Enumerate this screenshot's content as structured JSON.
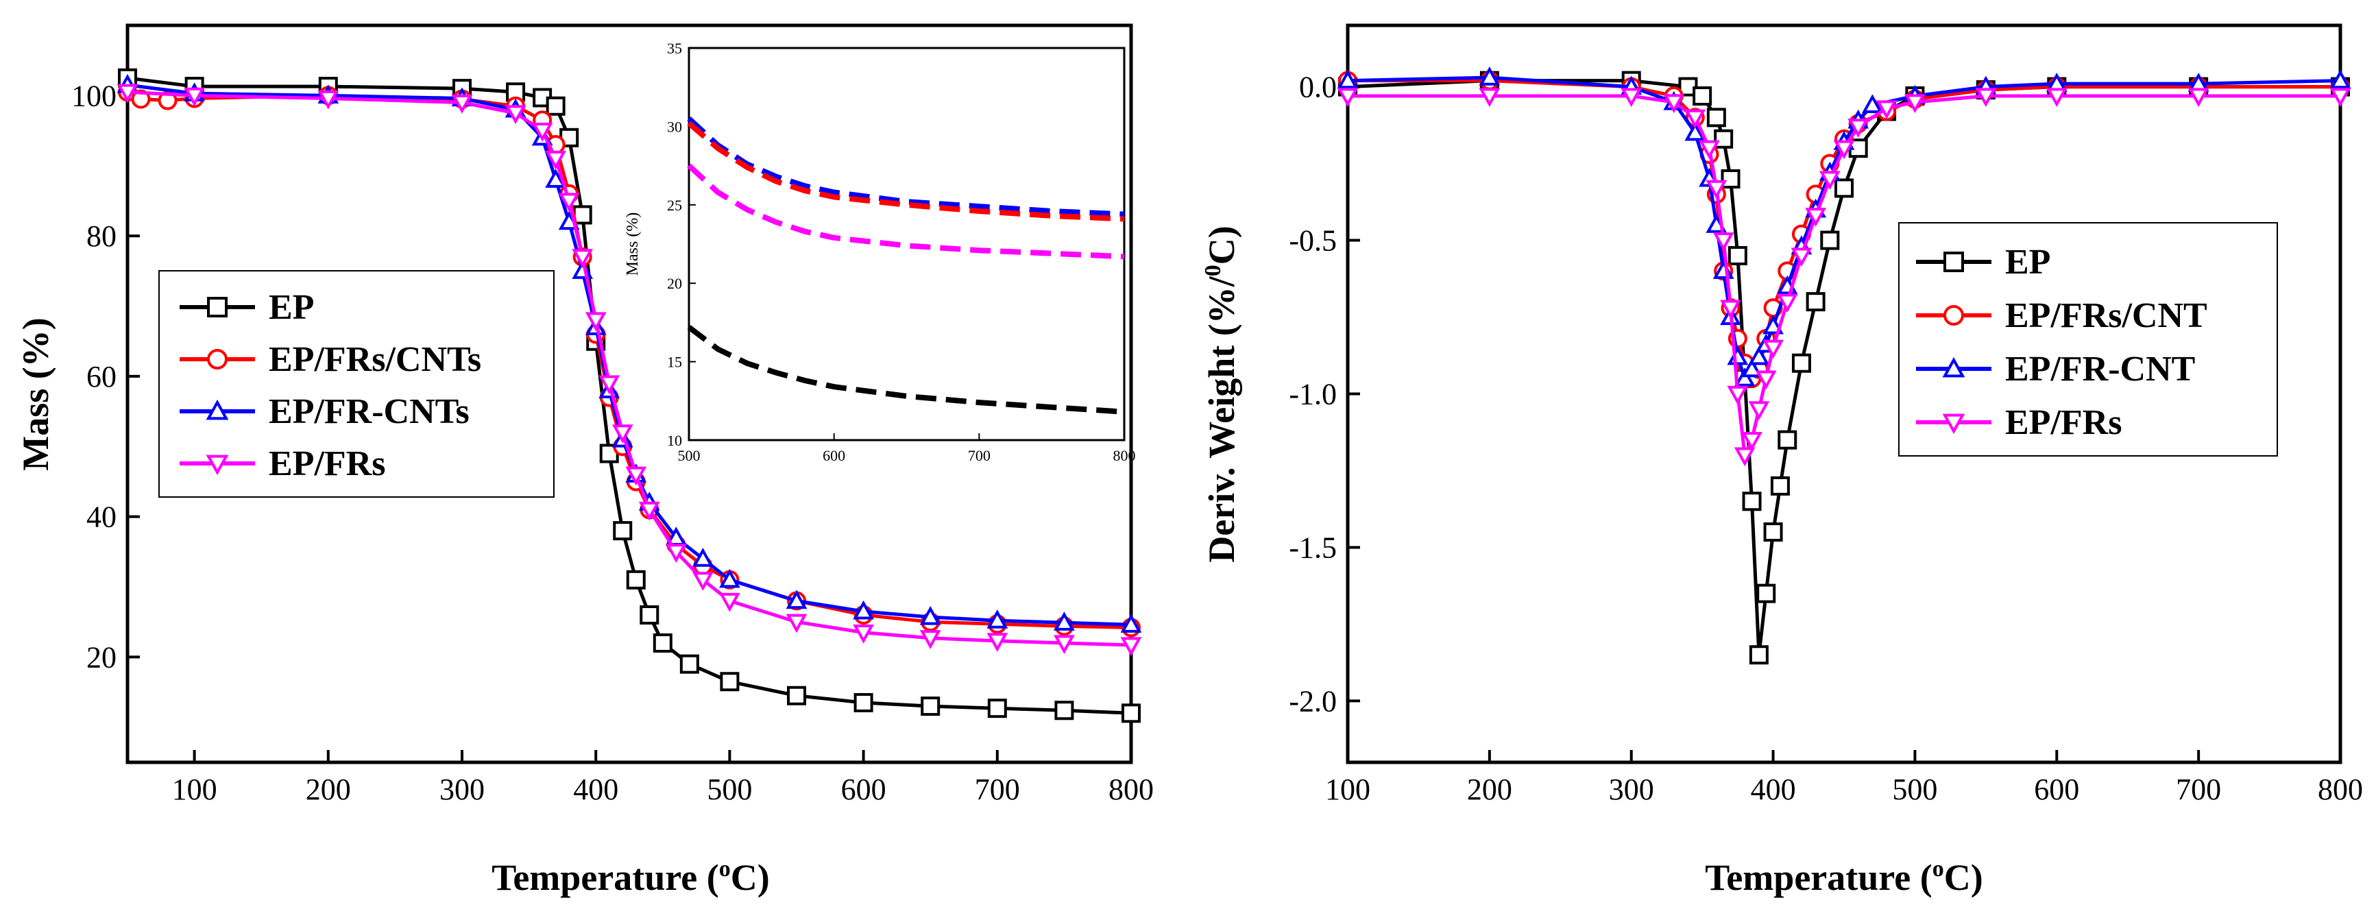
{
  "chart_data": [
    {
      "type": "line",
      "id": "tga",
      "xlabel_main": "Temperature (",
      "xlabel_sup": "o",
      "xlabel_tail": "C)",
      "ylabel": "Mass (%)",
      "xlim": [
        50,
        800
      ],
      "ylim": [
        5,
        110
      ],
      "xticks": [
        100,
        200,
        300,
        400,
        500,
        600,
        700,
        800
      ],
      "yticks": [
        20,
        40,
        60,
        80,
        100
      ],
      "legend_position": "middle-left",
      "series": [
        {
          "name": "EP",
          "color": "#000000",
          "marker": "square",
          "x": [
            50,
            100,
            200,
            300,
            340,
            360,
            370,
            380,
            390,
            400,
            410,
            420,
            430,
            440,
            450,
            470,
            500,
            550,
            600,
            650,
            700,
            750,
            800
          ],
          "y": [
            102.5,
            101.3,
            101.3,
            101.0,
            100.5,
            99.7,
            98.5,
            94,
            83,
            65,
            49,
            38,
            31,
            26,
            22,
            19,
            16.5,
            14.5,
            13.5,
            13.0,
            12.7,
            12.4,
            12.0
          ]
        },
        {
          "name": "EP/FRs/CNTs",
          "color": "#ff0000",
          "marker": "circle",
          "x": [
            50,
            60,
            80,
            100,
            200,
            300,
            340,
            360,
            370,
            380,
            390,
            400,
            410,
            420,
            430,
            440,
            460,
            480,
            500,
            550,
            600,
            650,
            700,
            750,
            800
          ],
          "y": [
            100.5,
            99.5,
            99.3,
            99.6,
            100.0,
            99.5,
            98.5,
            96.5,
            93,
            86,
            77,
            66,
            57,
            50,
            45,
            41,
            36,
            33,
            31,
            28,
            26,
            25,
            24.7,
            24.4,
            24.2
          ]
        },
        {
          "name": "EP/FR-CNTs",
          "color": "#0000ff",
          "marker": "triangle-up",
          "x": [
            50,
            100,
            200,
            300,
            340,
            360,
            370,
            380,
            390,
            400,
            410,
            420,
            430,
            440,
            460,
            480,
            500,
            550,
            600,
            650,
            700,
            750,
            800
          ],
          "y": [
            101.5,
            100.3,
            100.0,
            99.6,
            98.0,
            94,
            88,
            82,
            75,
            67,
            58,
            51,
            46,
            42,
            37,
            34,
            31,
            28,
            26.5,
            25.7,
            25.2,
            24.9,
            24.6
          ]
        },
        {
          "name": "EP/FRs",
          "color": "#ff00ff",
          "marker": "triangle-down",
          "x": [
            50,
            100,
            200,
            300,
            340,
            360,
            370,
            380,
            390,
            400,
            410,
            420,
            430,
            440,
            460,
            480,
            500,
            550,
            600,
            650,
            700,
            750,
            800
          ],
          "y": [
            100.5,
            100.0,
            99.6,
            99.0,
            97.5,
            95,
            91,
            85,
            77,
            68,
            59,
            52,
            46,
            41,
            35,
            31,
            28,
            25,
            23.5,
            22.7,
            22.3,
            22.0,
            21.7
          ]
        }
      ]
    },
    {
      "type": "line",
      "id": "tga-inset",
      "ylabel": "Mass (%)",
      "xlim": [
        500,
        800
      ],
      "ylim": [
        10,
        35
      ],
      "xticks": [
        500,
        600,
        700,
        800
      ],
      "yticks": [
        10,
        15,
        20,
        25,
        30,
        35
      ],
      "series": [
        {
          "name": "EP/FR-CNTs",
          "color": "#0000ff",
          "x": [
            500,
            520,
            540,
            560,
            580,
            600,
            650,
            700,
            750,
            800
          ],
          "y": [
            30.5,
            28.8,
            27.6,
            26.8,
            26.2,
            25.8,
            25.2,
            24.9,
            24.6,
            24.4
          ]
        },
        {
          "name": "EP/FRs/CNTs",
          "color": "#ff0000",
          "x": [
            500,
            520,
            540,
            560,
            580,
            600,
            650,
            700,
            750,
            800
          ],
          "y": [
            30.2,
            28.6,
            27.4,
            26.5,
            25.9,
            25.5,
            25.0,
            24.6,
            24.3,
            24.1
          ]
        },
        {
          "name": "EP/FRs",
          "color": "#ff00ff",
          "x": [
            500,
            520,
            540,
            560,
            580,
            600,
            650,
            700,
            750,
            800
          ],
          "y": [
            27.5,
            25.8,
            24.7,
            23.9,
            23.3,
            22.9,
            22.4,
            22.1,
            21.9,
            21.7
          ]
        },
        {
          "name": "EP",
          "color": "#000000",
          "x": [
            500,
            520,
            540,
            560,
            580,
            600,
            650,
            700,
            750,
            800
          ],
          "y": [
            17.2,
            15.8,
            14.9,
            14.3,
            13.8,
            13.4,
            12.8,
            12.4,
            12.1,
            11.8
          ]
        }
      ]
    },
    {
      "type": "line",
      "id": "dtg",
      "xlabel_main": "Temperature (",
      "xlabel_sup": "o",
      "xlabel_tail": "C)",
      "ylabel_main": "Deriv. Weight (%/",
      "ylabel_sup": "0",
      "ylabel_tail": "C)",
      "xlim": [
        100,
        800
      ],
      "ylim": [
        -2.2,
        0.2
      ],
      "xticks": [
        100,
        200,
        300,
        400,
        500,
        600,
        700,
        800
      ],
      "yticks": [
        -2.0,
        -1.5,
        -1.0,
        -0.5,
        0.0
      ],
      "legend_position": "middle-right",
      "series": [
        {
          "name": "EP",
          "color": "#000000",
          "marker": "square",
          "x": [
            100,
            200,
            300,
            340,
            350,
            360,
            365,
            370,
            375,
            380,
            385,
            390,
            395,
            400,
            405,
            410,
            420,
            430,
            440,
            450,
            460,
            480,
            500,
            550,
            600,
            700,
            800
          ],
          "y": [
            0.0,
            0.02,
            0.02,
            0.0,
            -0.03,
            -0.1,
            -0.17,
            -0.3,
            -0.55,
            -0.95,
            -1.35,
            -1.85,
            -1.65,
            -1.45,
            -1.3,
            -1.15,
            -0.9,
            -0.7,
            -0.5,
            -0.33,
            -0.2,
            -0.08,
            -0.03,
            -0.01,
            0.0,
            0.0,
            0.0
          ]
        },
        {
          "name": "EP/FRs/CNT",
          "color": "#ff0000",
          "marker": "circle",
          "x": [
            100,
            200,
            300,
            330,
            345,
            355,
            360,
            365,
            370,
            375,
            380,
            385,
            390,
            395,
            400,
            410,
            420,
            430,
            440,
            450,
            460,
            480,
            500,
            550,
            600,
            700,
            800
          ],
          "y": [
            0.02,
            0.02,
            0.0,
            -0.03,
            -0.1,
            -0.22,
            -0.35,
            -0.6,
            -0.72,
            -0.82,
            -0.9,
            -0.95,
            -0.92,
            -0.82,
            -0.72,
            -0.6,
            -0.48,
            -0.35,
            -0.25,
            -0.17,
            -0.12,
            -0.08,
            -0.04,
            -0.01,
            0.0,
            0.0,
            0.0
          ]
        },
        {
          "name": "EP/FR-CNT",
          "color": "#0000ff",
          "marker": "triangle-up",
          "x": [
            100,
            200,
            300,
            330,
            345,
            355,
            360,
            365,
            370,
            375,
            380,
            385,
            390,
            395,
            400,
            410,
            420,
            430,
            440,
            450,
            460,
            470,
            500,
            550,
            600,
            700,
            800
          ],
          "y": [
            0.02,
            0.03,
            0.0,
            -0.05,
            -0.15,
            -0.3,
            -0.45,
            -0.6,
            -0.75,
            -0.88,
            -0.95,
            -0.92,
            -0.88,
            -0.84,
            -0.78,
            -0.65,
            -0.52,
            -0.4,
            -0.28,
            -0.18,
            -0.11,
            -0.06,
            -0.03,
            0.0,
            0.01,
            0.01,
            0.02
          ]
        },
        {
          "name": "EP/FRs",
          "color": "#ff00ff",
          "marker": "triangle-down",
          "x": [
            100,
            200,
            300,
            330,
            345,
            355,
            360,
            365,
            370,
            375,
            380,
            385,
            390,
            395,
            400,
            410,
            420,
            430,
            440,
            450,
            460,
            480,
            500,
            550,
            600,
            700,
            800
          ],
          "y": [
            -0.03,
            -0.03,
            -0.03,
            -0.05,
            -0.1,
            -0.2,
            -0.33,
            -0.5,
            -0.72,
            -1.0,
            -1.2,
            -1.15,
            -1.05,
            -0.95,
            -0.85,
            -0.7,
            -0.55,
            -0.42,
            -0.3,
            -0.2,
            -0.13,
            -0.07,
            -0.05,
            -0.03,
            -0.03,
            -0.03,
            -0.03
          ]
        }
      ]
    }
  ]
}
